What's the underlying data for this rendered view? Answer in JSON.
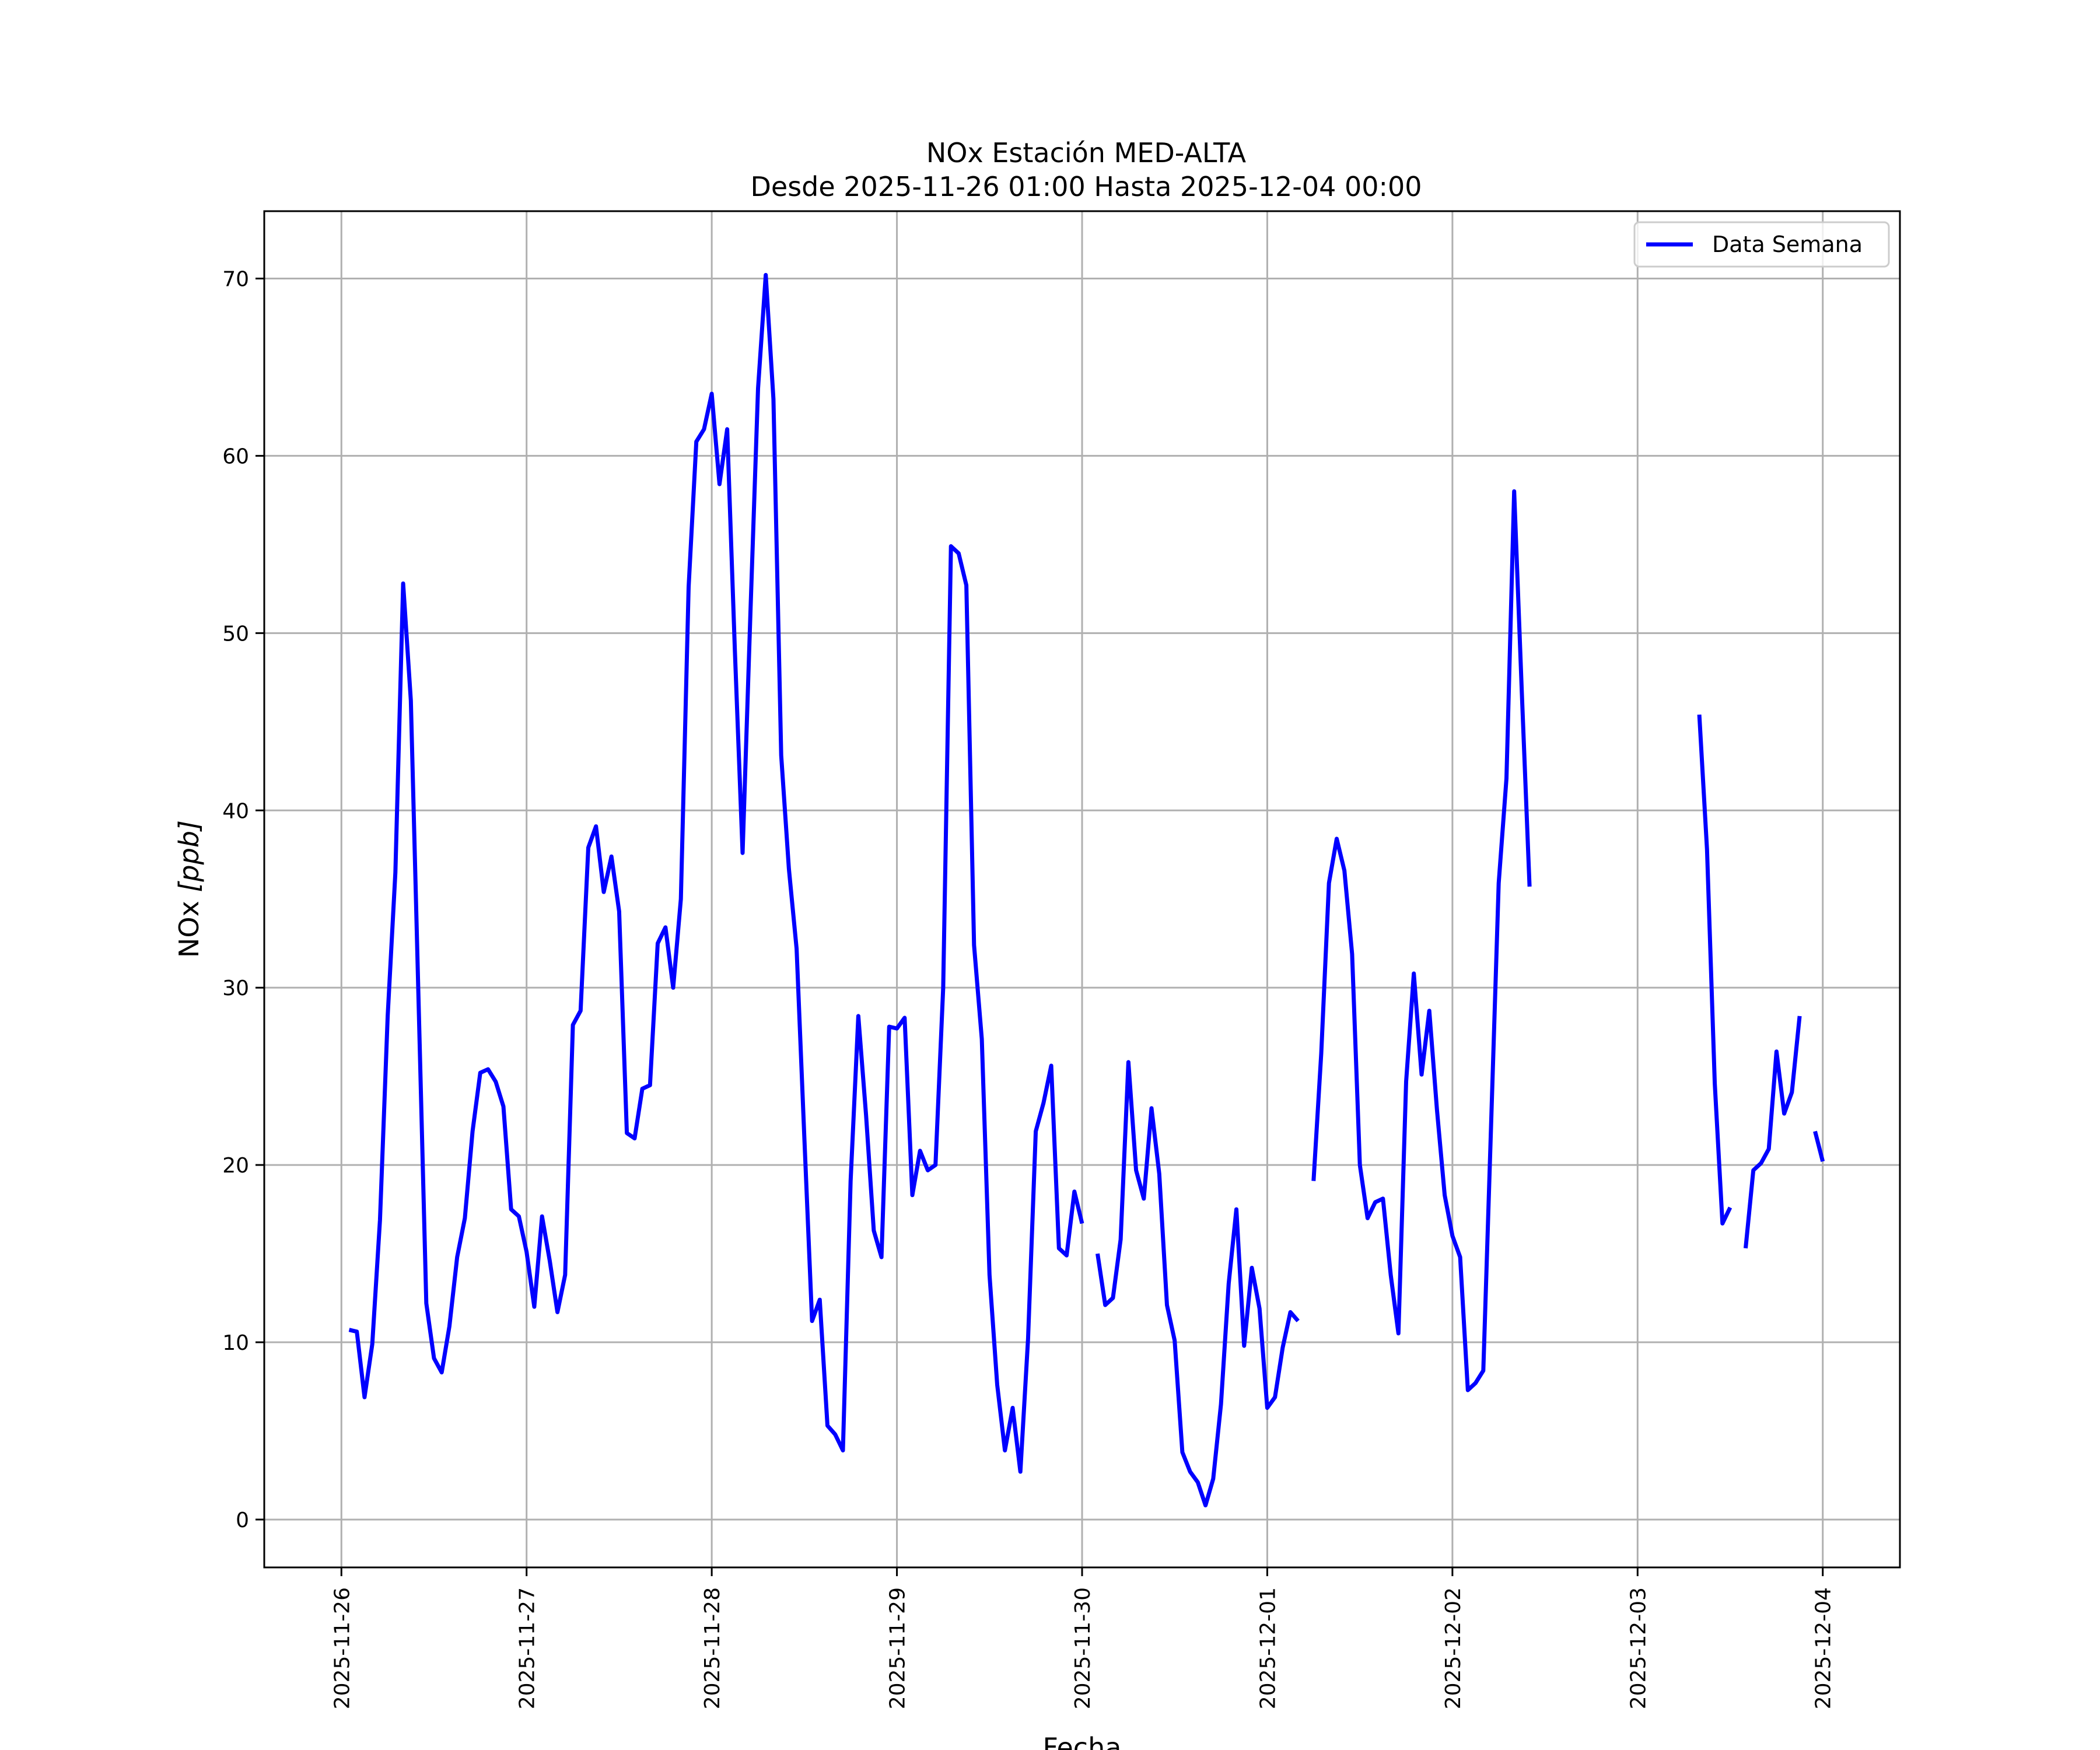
{
  "chart_data": {
    "type": "line",
    "title": "NOx Estación MED-ALTA",
    "subtitle": "Desde 2025-11-26 01:00 Hasta 2025-12-04 00:00",
    "xlabel": "Fecha",
    "ylabel": "NOx [ppb]",
    "ylabel_prefix": "NOx",
    "ylabel_unit": "[ppb]",
    "xlim": [
      "2025-11-25 14:00",
      "2025-12-04 10:00"
    ],
    "ylim": [
      -2.7,
      73.8
    ],
    "grid": true,
    "legend_position": "top-right",
    "x_ticks": [
      "2025-11-26",
      "2025-11-27",
      "2025-11-28",
      "2025-11-29",
      "2025-11-30",
      "2025-12-01",
      "2025-12-02",
      "2025-12-03",
      "2025-12-04"
    ],
    "y_ticks": [
      0,
      10,
      20,
      30,
      40,
      50,
      60,
      70
    ],
    "series": [
      {
        "name": "Data Semana",
        "color": "#0000ff",
        "x": [
          "2025-11-26 01:00",
          "2025-11-26 02:00",
          "2025-11-26 03:00",
          "2025-11-26 04:00",
          "2025-11-26 05:00",
          "2025-11-26 06:00",
          "2025-11-26 07:00",
          "2025-11-26 08:00",
          "2025-11-26 09:00",
          "2025-11-26 10:00",
          "2025-11-26 11:00",
          "2025-11-26 12:00",
          "2025-11-26 13:00",
          "2025-11-26 14:00",
          "2025-11-26 15:00",
          "2025-11-26 16:00",
          "2025-11-26 17:00",
          "2025-11-26 18:00",
          "2025-11-26 19:00",
          "2025-11-26 20:00",
          "2025-11-26 21:00",
          "2025-11-26 22:00",
          "2025-11-26 23:00",
          "2025-11-27 00:00",
          "2025-11-27 01:00",
          "2025-11-27 02:00",
          "2025-11-27 03:00",
          "2025-11-27 04:00",
          "2025-11-27 05:00",
          "2025-11-27 06:00",
          "2025-11-27 07:00",
          "2025-11-27 08:00",
          "2025-11-27 09:00",
          "2025-11-27 10:00",
          "2025-11-27 11:00",
          "2025-11-27 12:00",
          "2025-11-27 13:00",
          "2025-11-27 14:00",
          "2025-11-27 15:00",
          "2025-11-27 16:00",
          "2025-11-27 17:00",
          "2025-11-27 18:00",
          "2025-11-27 19:00",
          "2025-11-27 20:00",
          "2025-11-27 21:00",
          "2025-11-27 22:00",
          "2025-11-27 23:00",
          "2025-11-28 00:00",
          "2025-11-28 01:00",
          "2025-11-28 02:00",
          "2025-11-28 03:00",
          "2025-11-28 04:00",
          "2025-11-28 05:00",
          "2025-11-28 06:00",
          "2025-11-28 07:00",
          "2025-11-28 08:00",
          "2025-11-28 09:00",
          "2025-11-28 10:00",
          "2025-11-28 11:00",
          "2025-11-28 12:00",
          "2025-11-28 13:00",
          "2025-11-28 14:00",
          "2025-11-28 15:00",
          "2025-11-28 16:00",
          "2025-11-28 17:00",
          "2025-11-28 18:00",
          "2025-11-28 19:00",
          "2025-11-28 20:00",
          "2025-11-28 21:00",
          "2025-11-28 22:00",
          "2025-11-28 23:00",
          "2025-11-29 00:00",
          "2025-11-29 01:00",
          "2025-11-29 02:00",
          "2025-11-29 03:00",
          "2025-11-29 04:00",
          "2025-11-29 05:00",
          "2025-11-29 06:00",
          "2025-11-29 07:00",
          "2025-11-29 08:00",
          "2025-11-29 09:00",
          "2025-11-29 10:00",
          "2025-11-29 11:00",
          "2025-11-29 12:00",
          "2025-11-29 13:00",
          "2025-11-29 14:00",
          "2025-11-29 15:00",
          "2025-11-29 16:00",
          "2025-11-29 17:00",
          "2025-11-29 18:00",
          "2025-11-29 19:00",
          "2025-11-29 20:00",
          "2025-11-29 21:00",
          "2025-11-29 22:00",
          "2025-11-29 23:00",
          "2025-11-30 00:00",
          "2025-11-30 01:00",
          "2025-11-30 02:00",
          "2025-11-30 03:00",
          "2025-11-30 04:00",
          "2025-11-30 05:00",
          "2025-11-30 06:00",
          "2025-11-30 07:00",
          "2025-11-30 08:00",
          "2025-11-30 09:00",
          "2025-11-30 10:00",
          "2025-11-30 11:00",
          "2025-11-30 12:00",
          "2025-11-30 13:00",
          "2025-11-30 14:00",
          "2025-11-30 15:00",
          "2025-11-30 16:00",
          "2025-11-30 17:00",
          "2025-11-30 18:00",
          "2025-11-30 19:00",
          "2025-11-30 20:00",
          "2025-11-30 21:00",
          "2025-11-30 22:00",
          "2025-11-30 23:00",
          "2025-12-01 00:00",
          "2025-12-01 01:00",
          "2025-12-01 02:00",
          "2025-12-01 03:00",
          "2025-12-01 04:00",
          "2025-12-01 05:00",
          "2025-12-01 06:00",
          "2025-12-01 07:00",
          "2025-12-01 08:00",
          "2025-12-01 09:00",
          "2025-12-01 10:00",
          "2025-12-01 11:00",
          "2025-12-01 12:00",
          "2025-12-01 13:00",
          "2025-12-01 14:00",
          "2025-12-01 15:00",
          "2025-12-01 16:00",
          "2025-12-01 17:00",
          "2025-12-01 18:00",
          "2025-12-01 19:00",
          "2025-12-01 20:00",
          "2025-12-01 21:00",
          "2025-12-01 22:00",
          "2025-12-01 23:00",
          "2025-12-02 00:00",
          "2025-12-02 01:00",
          "2025-12-02 02:00",
          "2025-12-02 03:00",
          "2025-12-02 04:00",
          "2025-12-02 05:00",
          "2025-12-02 06:00",
          "2025-12-02 07:00",
          "2025-12-02 08:00",
          "2025-12-02 09:00",
          "2025-12-02 10:00",
          "2025-12-03 08:00",
          "2025-12-03 09:00",
          "2025-12-03 10:00",
          "2025-12-03 11:00",
          "2025-12-03 12:00",
          "2025-12-03 13:00",
          "2025-12-03 14:00",
          "2025-12-03 15:00",
          "2025-12-03 16:00",
          "2025-12-03 17:00",
          "2025-12-03 18:00",
          "2025-12-03 19:00",
          "2025-12-03 20:00",
          "2025-12-03 21:00",
          "2025-12-03 22:00",
          "2025-12-03 23:00",
          "2025-12-04 00:00"
        ],
        "values": [
          10.7,
          10.6,
          6.9,
          9.9,
          16.9,
          28.4,
          36.5,
          52.8,
          46.2,
          29.3,
          12.2,
          9.1,
          8.3,
          10.9,
          14.8,
          17.0,
          21.9,
          25.2,
          25.4,
          24.7,
          23.3,
          17.5,
          17.1,
          15.1,
          12.0,
          17.1,
          14.6,
          11.7,
          13.8,
          27.9,
          28.7,
          37.9,
          39.1,
          35.4,
          37.4,
          34.3,
          21.8,
          21.5,
          24.3,
          24.5,
          32.5,
          33.4,
          30.0,
          35.0,
          52.6,
          60.8,
          61.5,
          63.5,
          58.4,
          61.5,
          49.0,
          37.6,
          51.0,
          63.8,
          70.2,
          63.2,
          43.1,
          36.7,
          32.2,
          21.6,
          11.2,
          12.4,
          5.3,
          4.8,
          3.9,
          19.1,
          28.4,
          22.8,
          16.3,
          14.8,
          27.8,
          27.7,
          28.3,
          18.3,
          20.8,
          19.7,
          20.0,
          30.0,
          54.9,
          54.5,
          52.7,
          32.4,
          27.1,
          13.8,
          7.6,
          3.9,
          6.3,
          2.7,
          10.2,
          21.9,
          23.5,
          25.6,
          15.3,
          14.9,
          18.5,
          16.7,
          null,
          15.0,
          12.1,
          12.5,
          15.8,
          25.8,
          19.7,
          18.1,
          23.2,
          19.5,
          12.1,
          10.1,
          3.8,
          2.7,
          2.1,
          0.8,
          2.3,
          6.5,
          13.3,
          17.5,
          9.8,
          14.2,
          11.9,
          6.3,
          6.9,
          9.7,
          11.7,
          11.2,
          null,
          19.1,
          26.3,
          35.9,
          38.4,
          36.6,
          31.9,
          20.0,
          17.0,
          17.9,
          18.1,
          13.8,
          10.5,
          24.7,
          30.8,
          25.1,
          28.7,
          23.1,
          18.3,
          16.0,
          14.8,
          7.3,
          7.7,
          8.4,
          22.1,
          35.9,
          41.8,
          58.0,
          46.6,
          35.7,
          45.4,
          37.8,
          24.6,
          16.7,
          17.6,
          null,
          15.3,
          19.7,
          20.1,
          20.9,
          26.4,
          22.9,
          24.1,
          28.4,
          null,
          21.9,
          20.2
        ]
      }
    ]
  }
}
